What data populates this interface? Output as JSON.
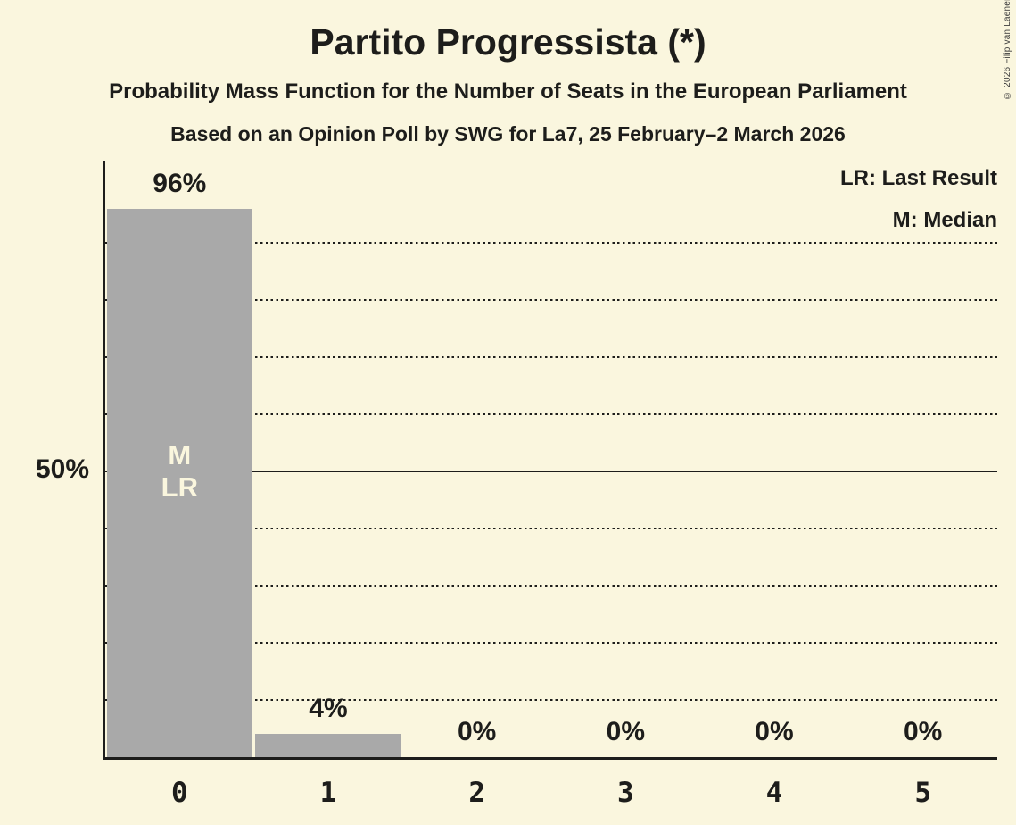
{
  "header": {
    "title": "Partito Progressista (*)",
    "subtitle": "Probability Mass Function for the Number of Seats in the European Parliament",
    "poll_line": "Based on an Opinion Poll by SWG for La7, 25 February–2 March 2026"
  },
  "legend": {
    "last_result": "LR: Last Result",
    "median": "M: Median"
  },
  "copyright": "© 2026 Filip van Laenen",
  "colors": {
    "background": "#FAF6DE",
    "bar": "#A9A9A9",
    "text": "#1D1D1B",
    "inside_bar_label": "#FAF6DE"
  },
  "chart_data": {
    "type": "bar",
    "title": "Partito Progressista (*)",
    "categories": [
      "0",
      "1",
      "2",
      "3",
      "4",
      "5"
    ],
    "values": [
      96,
      4,
      0,
      0,
      0,
      0
    ],
    "value_labels": [
      "96%",
      "4%",
      "0%",
      "0%",
      "0%",
      "0%"
    ],
    "y_axis": {
      "tick_label": "50%",
      "tick_value": 50,
      "solid_line_value": 50,
      "dotted_gridlines": [
        10,
        20,
        30,
        40,
        60,
        70,
        80,
        90
      ],
      "ylim": [
        0,
        104
      ]
    },
    "annotations": {
      "bar_index": 0,
      "lines": [
        "M",
        "LR"
      ],
      "legend_meaning": {
        "LR": "Last Result",
        "M": "Median"
      }
    },
    "legend_position": "top-right",
    "grid": "dotted-horizontal"
  }
}
